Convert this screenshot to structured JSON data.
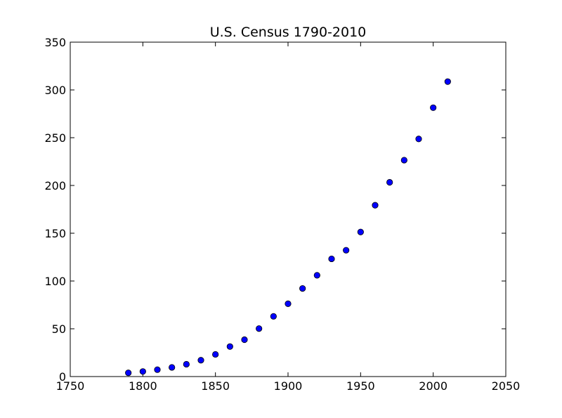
{
  "chart_data": {
    "type": "scatter",
    "title": "U.S. Census 1790-2010",
    "xlabel": "",
    "ylabel": "",
    "xlim": [
      1750,
      2050
    ],
    "ylim": [
      0,
      350
    ],
    "xticks": [
      1750,
      1800,
      1850,
      1900,
      1950,
      2000,
      2050
    ],
    "yticks": [
      0,
      50,
      100,
      150,
      200,
      250,
      300,
      350
    ],
    "grid": false,
    "legend": "none",
    "marker_color": "#0000ff",
    "marker_edge_color": "#000000",
    "series": [
      {
        "x": [
          1790,
          1800,
          1810,
          1820,
          1830,
          1840,
          1850,
          1860,
          1870,
          1880,
          1890,
          1900,
          1910,
          1920,
          1930,
          1940,
          1950,
          1960,
          1970,
          1980,
          1990,
          2000,
          2010
        ],
        "y": [
          3.9,
          5.3,
          7.2,
          9.6,
          12.9,
          17.1,
          23.2,
          31.4,
          38.6,
          50.2,
          63.0,
          76.2,
          92.2,
          106.0,
          123.2,
          132.2,
          151.3,
          179.3,
          203.3,
          226.5,
          248.7,
          281.4,
          308.7
        ]
      }
    ]
  }
}
